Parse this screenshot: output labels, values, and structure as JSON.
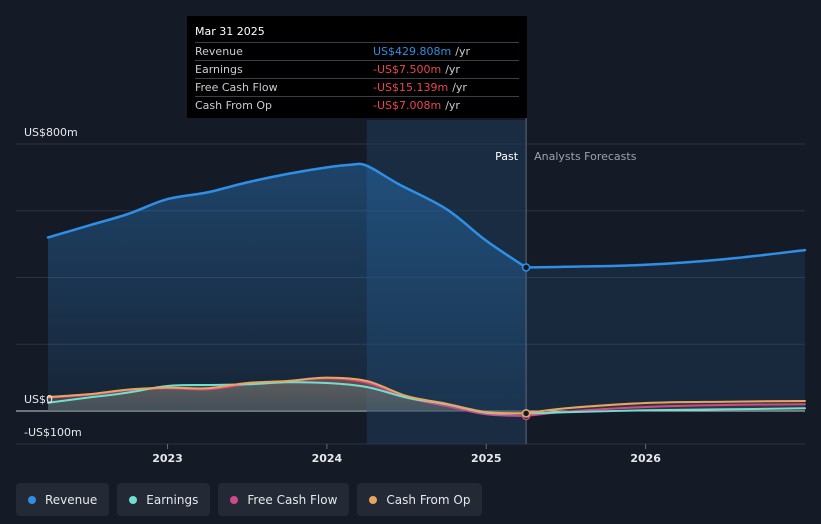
{
  "chart_data": {
    "type": "area",
    "x_tick_labels": [
      "2023",
      "2024",
      "2025",
      "2026"
    ],
    "y_tick_labels": {
      "top": "US$800m",
      "zero": "US$0",
      "bottom": "-US$100m"
    },
    "ylim": [
      -100,
      800
    ],
    "xlim": [
      2022.25,
      2027.0
    ],
    "divider_x": 2025.25,
    "highlight_start_x": 2024.25,
    "regions": {
      "past": "Past",
      "forecast": "Analysts Forecasts"
    },
    "series": [
      {
        "name": "Revenue",
        "color": "#2f8fe6",
        "points": [
          [
            2022.25,
            520
          ],
          [
            2022.5,
            555
          ],
          [
            2022.75,
            590
          ],
          [
            2023.0,
            635
          ],
          [
            2023.25,
            655
          ],
          [
            2023.5,
            685
          ],
          [
            2023.75,
            710
          ],
          [
            2024.0,
            730
          ],
          [
            2024.15,
            738
          ],
          [
            2024.25,
            735
          ],
          [
            2024.45,
            680
          ],
          [
            2024.75,
            605
          ],
          [
            2025.0,
            510
          ],
          [
            2025.25,
            430
          ]
        ],
        "forecast": [
          [
            2025.25,
            430
          ],
          [
            2025.5,
            432
          ],
          [
            2026.0,
            438
          ],
          [
            2026.5,
            455
          ],
          [
            2027.0,
            482
          ]
        ]
      },
      {
        "name": "Earnings",
        "color": "#6fe0cf",
        "points": [
          [
            2022.25,
            25
          ],
          [
            2022.5,
            40
          ],
          [
            2022.75,
            55
          ],
          [
            2023.0,
            75
          ],
          [
            2023.25,
            78
          ],
          [
            2023.5,
            80
          ],
          [
            2023.75,
            86
          ],
          [
            2024.0,
            84
          ],
          [
            2024.25,
            72
          ],
          [
            2024.5,
            40
          ],
          [
            2024.75,
            20
          ],
          [
            2025.0,
            -5
          ],
          [
            2025.25,
            -7.5
          ]
        ],
        "forecast": [
          [
            2025.25,
            -7.5
          ],
          [
            2025.5,
            -4
          ],
          [
            2026.0,
            2
          ],
          [
            2026.5,
            5
          ],
          [
            2027.0,
            8
          ]
        ]
      },
      {
        "name": "Free Cash Flow",
        "color": "#d04a8a",
        "points": [
          [
            2022.25,
            40
          ],
          [
            2022.5,
            48
          ],
          [
            2022.75,
            62
          ],
          [
            2023.0,
            68
          ],
          [
            2023.25,
            65
          ],
          [
            2023.5,
            80
          ],
          [
            2023.75,
            88
          ],
          [
            2024.0,
            98
          ],
          [
            2024.25,
            85
          ],
          [
            2024.5,
            40
          ],
          [
            2024.75,
            15
          ],
          [
            2025.0,
            -10
          ],
          [
            2025.25,
            -15.1
          ]
        ],
        "forecast": [
          [
            2025.25,
            -15.1
          ],
          [
            2025.5,
            -2
          ],
          [
            2026.0,
            12
          ],
          [
            2026.5,
            18
          ],
          [
            2027.0,
            20
          ]
        ]
      },
      {
        "name": "Cash From Op",
        "color": "#e8a55e",
        "points": [
          [
            2022.25,
            42
          ],
          [
            2022.5,
            50
          ],
          [
            2022.75,
            64
          ],
          [
            2023.0,
            70
          ],
          [
            2023.25,
            68
          ],
          [
            2023.5,
            84
          ],
          [
            2023.75,
            90
          ],
          [
            2024.0,
            100
          ],
          [
            2024.25,
            90
          ],
          [
            2024.5,
            45
          ],
          [
            2024.75,
            22
          ],
          [
            2025.0,
            -3
          ],
          [
            2025.25,
            -7
          ]
        ],
        "forecast": [
          [
            2025.25,
            -7
          ],
          [
            2025.5,
            8
          ],
          [
            2026.0,
            24
          ],
          [
            2026.5,
            28
          ],
          [
            2027.0,
            30
          ]
        ]
      }
    ]
  },
  "tooltip": {
    "date": "Mar 31 2025",
    "unit": "/yr",
    "rows": [
      {
        "label": "Revenue",
        "value": "US$429.808m",
        "color": "#2f8fe6"
      },
      {
        "label": "Earnings",
        "value": "-US$7.500m",
        "color": "#e8484e"
      },
      {
        "label": "Free Cash Flow",
        "value": "-US$15.139m",
        "color": "#e8484e"
      },
      {
        "label": "Cash From Op",
        "value": "-US$7.008m",
        "color": "#e8484e"
      }
    ]
  },
  "legend": [
    {
      "label": "Revenue",
      "color": "#2f8fe6"
    },
    {
      "label": "Earnings",
      "color": "#6fe0cf"
    },
    {
      "label": "Free Cash Flow",
      "color": "#d04a8a"
    },
    {
      "label": "Cash From Op",
      "color": "#e8a55e"
    }
  ]
}
